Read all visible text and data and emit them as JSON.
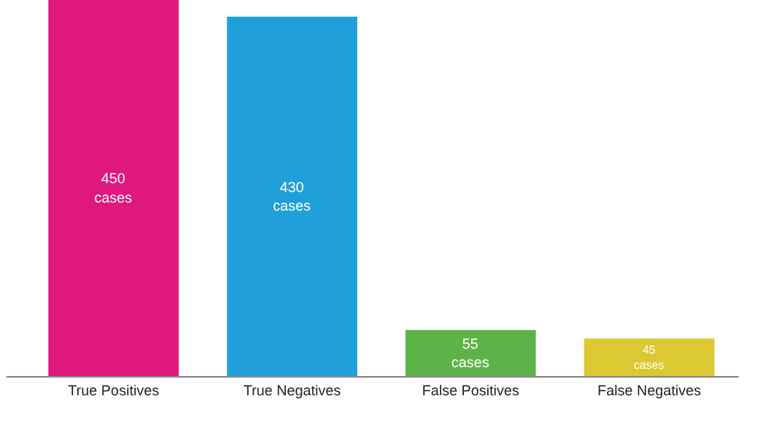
{
  "chart_data": {
    "type": "bar",
    "categories": [
      "True Positives",
      "True Negatives",
      "False Positives",
      "False Negatives"
    ],
    "values": [
      450,
      430,
      55,
      45
    ],
    "colors": [
      "#e0177c",
      "#1fa0db",
      "#5db347",
      "#dcc832"
    ],
    "value_labels": [
      "450\ncases",
      "430\ncases",
      "55\ncases",
      "45\ncases"
    ],
    "ylim": [
      0,
      450
    ],
    "tick_labels": "x"
  }
}
